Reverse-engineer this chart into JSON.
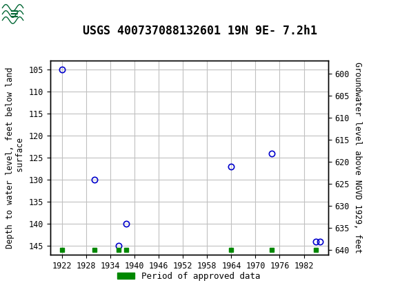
{
  "title": "USGS 400737088132601 19N 9E- 7.2h1",
  "ylabel_left": "Depth to water level, feet below land\n surface",
  "ylabel_right": "Groundwater level above NGVD 1929, feet",
  "x_data": [
    1922,
    1930,
    1936,
    1938,
    1964,
    1974,
    1985,
    1986
  ],
  "y_left_data": [
    105,
    130,
    145,
    140,
    127,
    124,
    144,
    144
  ],
  "xlim": [
    1919,
    1988
  ],
  "ylim_left": [
    103,
    147
  ],
  "ylim_right": [
    597,
    641
  ],
  "xticks": [
    1922,
    1928,
    1934,
    1940,
    1946,
    1952,
    1958,
    1964,
    1970,
    1976,
    1982
  ],
  "yticks_left": [
    105,
    110,
    115,
    120,
    125,
    130,
    135,
    140,
    145
  ],
  "yticks_right": [
    640,
    635,
    630,
    625,
    620,
    615,
    610,
    605,
    600
  ],
  "marker_color": "#0000cc",
  "marker_size": 6,
  "grid_color": "#c0c0c0",
  "background_color": "#ffffff",
  "header_color": "#006633",
  "legend_color": "#008800",
  "approved_data_x": [
    1922,
    1930,
    1936,
    1938,
    1964,
    1974,
    1985
  ],
  "title_fontsize": 12,
  "axis_label_fontsize": 8.5,
  "tick_fontsize": 8.5
}
